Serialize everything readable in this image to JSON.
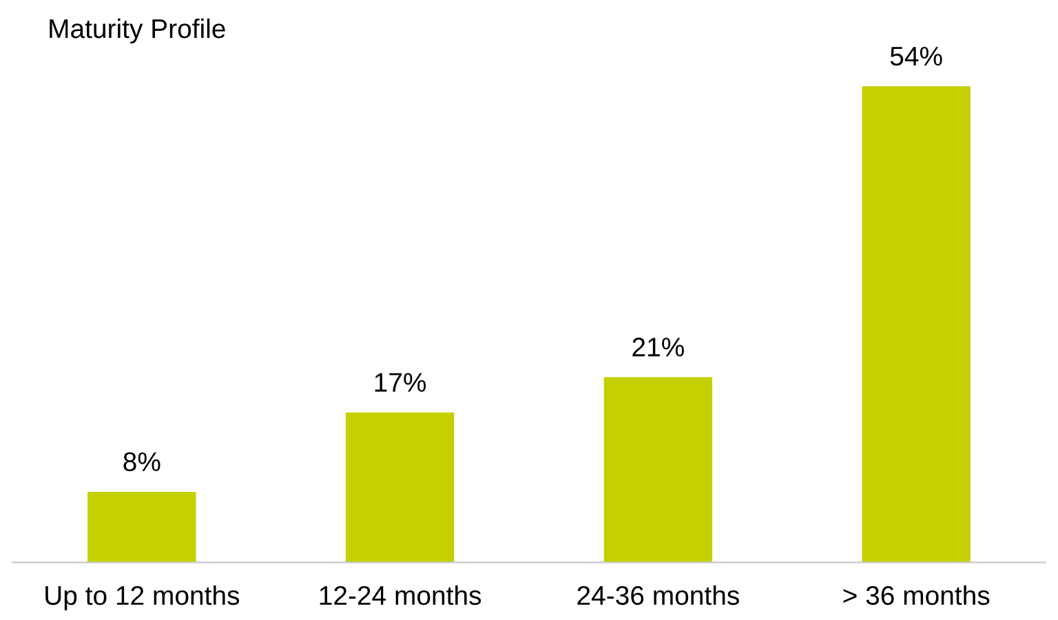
{
  "chart_data": {
    "type": "bar",
    "title": "Maturity Profile",
    "categories": [
      "Up to 12 months",
      "12-24 months",
      "24-36 months",
      "> 36 months"
    ],
    "values": [
      8,
      17,
      21,
      54
    ],
    "value_labels": [
      "8%",
      "17%",
      "21%",
      "54%"
    ],
    "color": "#c4d000",
    "grid": false,
    "legend": false
  }
}
